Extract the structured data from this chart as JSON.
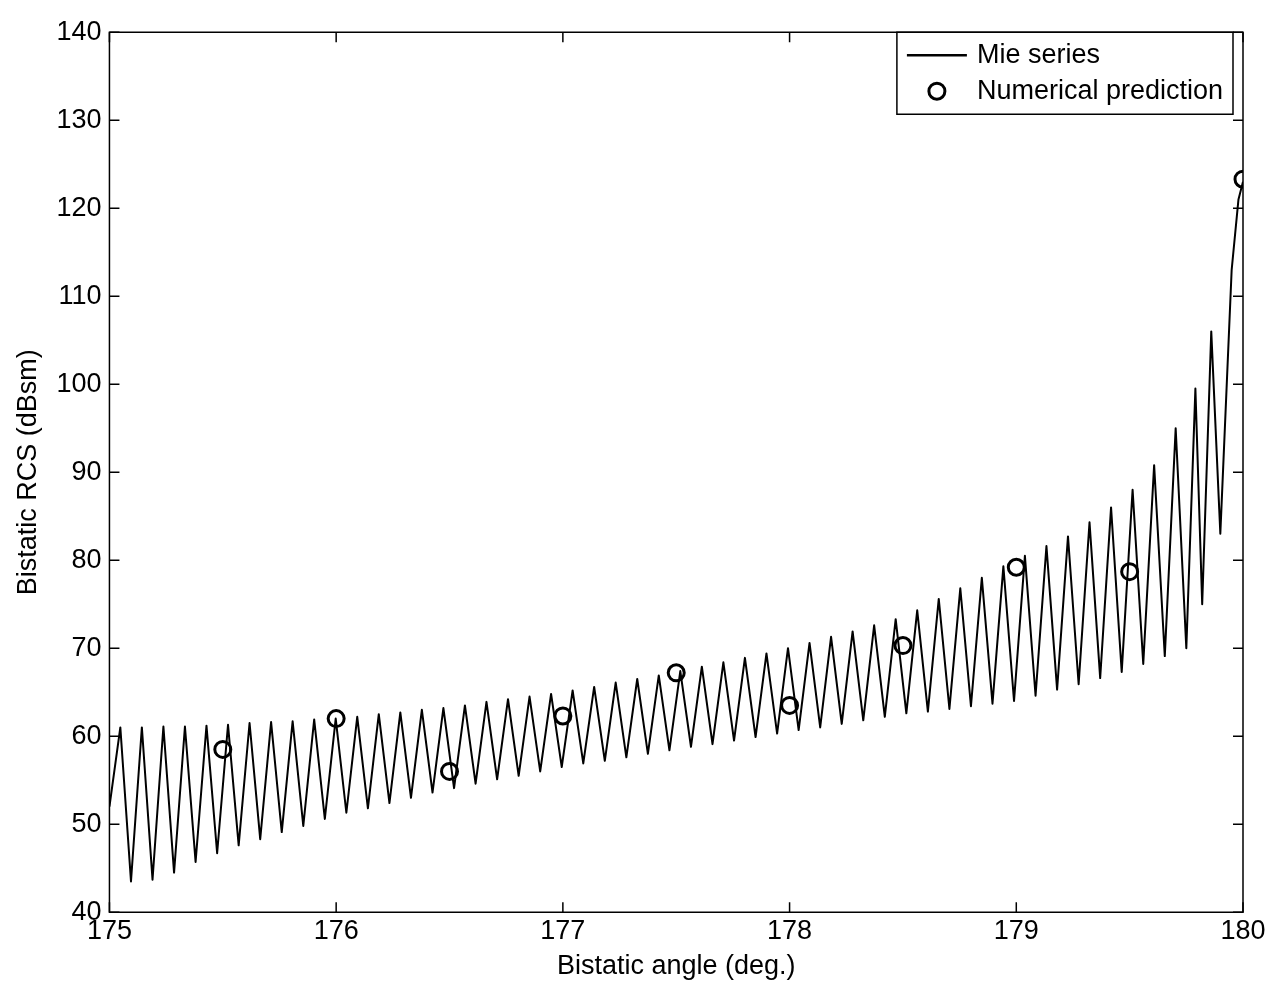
{
  "chart_data": {
    "type": "line",
    "xlabel": "Bistatic angle (deg.)",
    "ylabel": "Bistatic RCS (dBsm)",
    "xlim": [
      175,
      180
    ],
    "ylim": [
      40,
      140
    ],
    "xticks": [
      175,
      176,
      177,
      178,
      179,
      180
    ],
    "yticks": [
      40,
      50,
      60,
      70,
      80,
      90,
      100,
      110,
      120,
      130,
      140
    ],
    "grid": false,
    "legend": "top right",
    "series": [
      {
        "name": "Mie series",
        "color": "#000000",
        "marker": "none",
        "line_style": "solid",
        "x": [
          175,
          175.048,
          175.095,
          175.143,
          175.19,
          175.238,
          175.285,
          175.333,
          175.38,
          175.428,
          175.475,
          175.523,
          175.57,
          175.618,
          175.665,
          175.713,
          175.76,
          175.808,
          175.855,
          175.903,
          175.95,
          175.998,
          176.045,
          176.093,
          176.14,
          176.188,
          176.235,
          176.283,
          176.33,
          176.378,
          176.425,
          176.473,
          176.52,
          176.568,
          176.615,
          176.663,
          176.71,
          176.758,
          176.805,
          176.853,
          176.9,
          176.948,
          176.995,
          177.043,
          177.09,
          177.138,
          177.185,
          177.233,
          177.28,
          177.328,
          177.375,
          177.423,
          177.47,
          177.518,
          177.565,
          177.613,
          177.66,
          177.708,
          177.755,
          177.803,
          177.85,
          177.898,
          177.945,
          177.993,
          178.04,
          178.088,
          178.135,
          178.183,
          178.23,
          178.278,
          178.325,
          178.373,
          178.42,
          178.468,
          178.515,
          178.563,
          178.61,
          178.658,
          178.705,
          178.753,
          178.8,
          178.848,
          178.895,
          178.943,
          178.99,
          179.038,
          179.085,
          179.133,
          179.18,
          179.228,
          179.275,
          179.323,
          179.37,
          179.418,
          179.465,
          179.513,
          179.56,
          179.608,
          179.655,
          179.703,
          179.75,
          179.79,
          179.82,
          179.86,
          179.9,
          179.95,
          179.98,
          180
        ],
        "values": [
          52,
          61,
          43.5,
          61,
          43.7,
          61.1,
          44.5,
          61.1,
          45.7,
          61.2,
          46.7,
          61.3,
          47.6,
          61.5,
          48.3,
          61.6,
          49.1,
          61.7,
          49.8,
          61.9,
          50.6,
          62,
          51.3,
          62.2,
          51.8,
          62.5,
          52.4,
          62.7,
          53,
          63,
          53.6,
          63.2,
          54.1,
          63.5,
          54.6,
          63.9,
          55.1,
          64.2,
          55.5,
          64.5,
          56,
          64.8,
          56.5,
          65.2,
          56.9,
          65.6,
          57.2,
          66.1,
          57.6,
          66.5,
          58,
          66.9,
          58.4,
          67.4,
          58.8,
          67.9,
          59.1,
          68.4,
          59.5,
          68.9,
          59.9,
          69.4,
          60.3,
          70,
          60.7,
          70.6,
          61,
          71.3,
          61.4,
          71.9,
          61.8,
          72.6,
          62.2,
          73.3,
          62.6,
          74.3,
          62.8,
          75.6,
          63.1,
          76.8,
          63.4,
          78,
          63.7,
          79.3,
          64,
          80.5,
          64.6,
          81.6,
          65.3,
          82.7,
          65.9,
          84.3,
          66.6,
          86,
          67.3,
          88,
          68.2,
          90.8,
          69.1,
          95,
          70,
          99.5,
          75,
          106,
          83,
          113,
          121,
          123
        ]
      },
      {
        "name": "Numerical prediction",
        "type": "scatter",
        "color": "#000000",
        "marker": "circle",
        "x": [
          175.5,
          176,
          176.5,
          177,
          177.5,
          178,
          178.5,
          179,
          179.5,
          180
        ],
        "values": [
          58.5,
          62,
          56,
          62.3,
          67.2,
          63.5,
          70.3,
          79.2,
          78.7,
          123.3
        ]
      }
    ]
  }
}
